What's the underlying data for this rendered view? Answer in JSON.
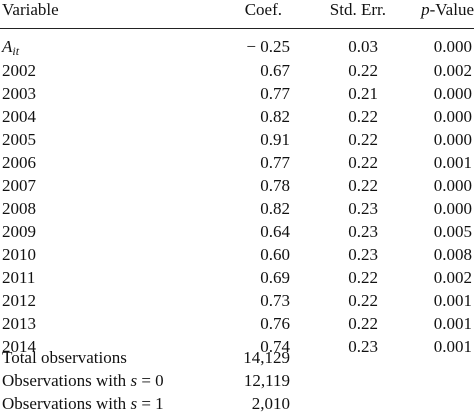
{
  "table": {
    "headers": {
      "variable": "Variable",
      "coef": "Coef.",
      "std_err": "Std. Err.",
      "p_value_italic": "p",
      "p_value_rest": "-Value"
    },
    "rows": [
      {
        "variable_main": "A",
        "variable_sub": "it",
        "coef": "− 0.25",
        "std_err": "0.03",
        "p_value": "0.000"
      },
      {
        "variable": "2002",
        "coef": "0.67",
        "std_err": "0.22",
        "p_value": "0.002"
      },
      {
        "variable": "2003",
        "coef": "0.77",
        "std_err": "0.21",
        "p_value": "0.000"
      },
      {
        "variable": "2004",
        "coef": "0.82",
        "std_err": "0.22",
        "p_value": "0.000"
      },
      {
        "variable": "2005",
        "coef": "0.91",
        "std_err": "0.22",
        "p_value": "0.000"
      },
      {
        "variable": "2006",
        "coef": "0.77",
        "std_err": "0.22",
        "p_value": "0.001"
      },
      {
        "variable": "2007",
        "coef": "0.78",
        "std_err": "0.22",
        "p_value": "0.000"
      },
      {
        "variable": "2008",
        "coef": "0.82",
        "std_err": "0.23",
        "p_value": "0.000"
      },
      {
        "variable": "2009",
        "coef": "0.64",
        "std_err": "0.23",
        "p_value": "0.005"
      },
      {
        "variable": "2010",
        "coef": "0.60",
        "std_err": "0.23",
        "p_value": "0.008"
      },
      {
        "variable": "2011",
        "coef": "0.69",
        "std_err": "0.22",
        "p_value": "0.002"
      },
      {
        "variable": "2012",
        "coef": "0.73",
        "std_err": "0.22",
        "p_value": "0.001"
      },
      {
        "variable": "2013",
        "coef": "0.76",
        "std_err": "0.22",
        "p_value": "0.001"
      },
      {
        "variable": "2014",
        "coef": "0.74",
        "std_err": "0.23",
        "p_value": "0.001"
      },
      {
        "variable": "Total observations",
        "coef": "14,129",
        "std_err": "",
        "p_value": ""
      },
      {
        "variable_pre": "Observations with ",
        "variable_italic": "s",
        "variable_post": " = 0",
        "coef": "12,119",
        "std_err": "",
        "p_value": ""
      },
      {
        "variable_pre": "Observations with ",
        "variable_italic": "s",
        "variable_post": " = 1",
        "coef": "2,010",
        "std_err": "",
        "p_value": ""
      }
    ]
  }
}
